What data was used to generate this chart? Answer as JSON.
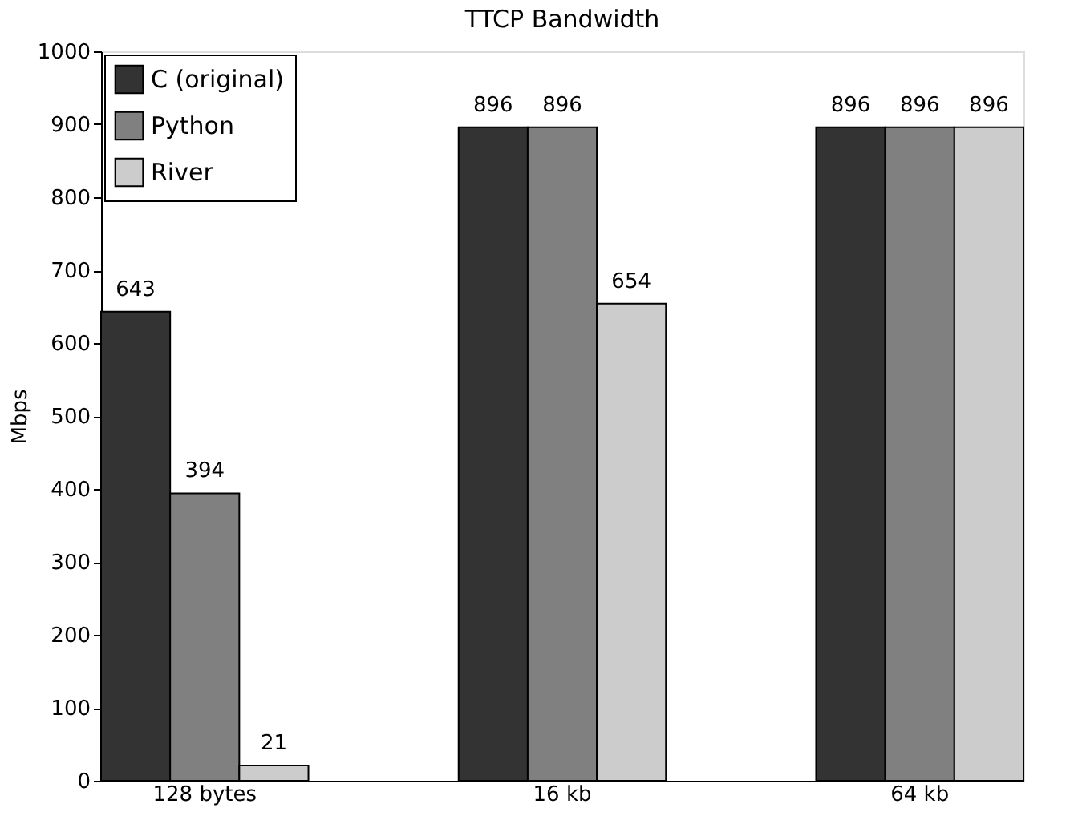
{
  "chart_data": {
    "type": "bar",
    "title": "TTCP Bandwidth",
    "ylabel": "Mbps",
    "categories": [
      "128 bytes",
      "16 kb",
      "64 kb"
    ],
    "series": [
      {
        "name": "C (original)",
        "color": "#333333",
        "values": [
          643,
          896,
          896
        ]
      },
      {
        "name": "Python",
        "color": "#808080",
        "values": [
          394,
          896,
          896
        ]
      },
      {
        "name": "River",
        "color": "#cccccc",
        "values": [
          21,
          654,
          896
        ]
      }
    ],
    "ylim": [
      0,
      1000
    ],
    "yticks": [
      0,
      100,
      200,
      300,
      400,
      500,
      600,
      700,
      800,
      900,
      1000
    ],
    "data_labels": true,
    "legend": "top left",
    "grid": false
  }
}
